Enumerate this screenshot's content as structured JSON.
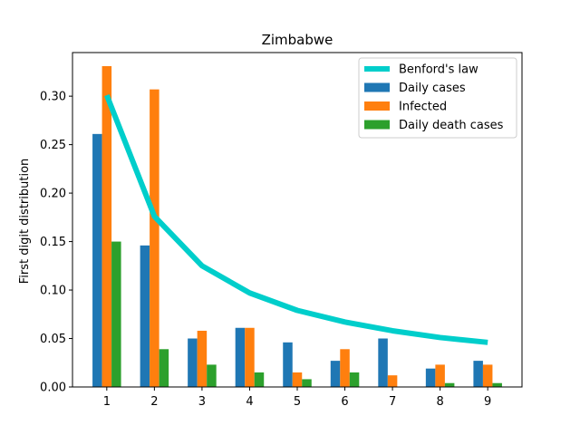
{
  "chart_data": {
    "type": "bar",
    "title": "Zimbabwe",
    "xlabel": "",
    "ylabel": "First digit distribution",
    "categories": [
      "1",
      "2",
      "3",
      "4",
      "5",
      "6",
      "7",
      "8",
      "9"
    ],
    "ylim": [
      0,
      0.345
    ],
    "yticks": [
      0.0,
      0.05,
      0.1,
      0.15,
      0.2,
      0.25,
      0.3
    ],
    "ytick_labels": [
      "0.00",
      "0.05",
      "0.10",
      "0.15",
      "0.20",
      "0.25",
      "0.30"
    ],
    "grid": false,
    "legend_position": "top-right",
    "series": [
      {
        "name": "Daily cases",
        "kind": "bar",
        "color": "#1f77b4",
        "values": [
          0.261,
          0.146,
          0.05,
          0.061,
          0.046,
          0.027,
          0.05,
          0.019,
          0.027
        ]
      },
      {
        "name": "Infected",
        "kind": "bar",
        "color": "#ff7f0e",
        "values": [
          0.331,
          0.307,
          0.058,
          0.061,
          0.015,
          0.039,
          0.012,
          0.023,
          0.023
        ]
      },
      {
        "name": "Daily death cases",
        "kind": "bar",
        "color": "#2ca02c",
        "values": [
          0.15,
          0.039,
          0.023,
          0.015,
          0.008,
          0.015,
          0.0,
          0.004,
          0.004
        ]
      },
      {
        "name": "Benford's law",
        "kind": "line",
        "color": "#00cecb",
        "values": [
          0.301,
          0.176,
          0.125,
          0.097,
          0.079,
          0.067,
          0.058,
          0.051,
          0.046
        ]
      }
    ]
  }
}
